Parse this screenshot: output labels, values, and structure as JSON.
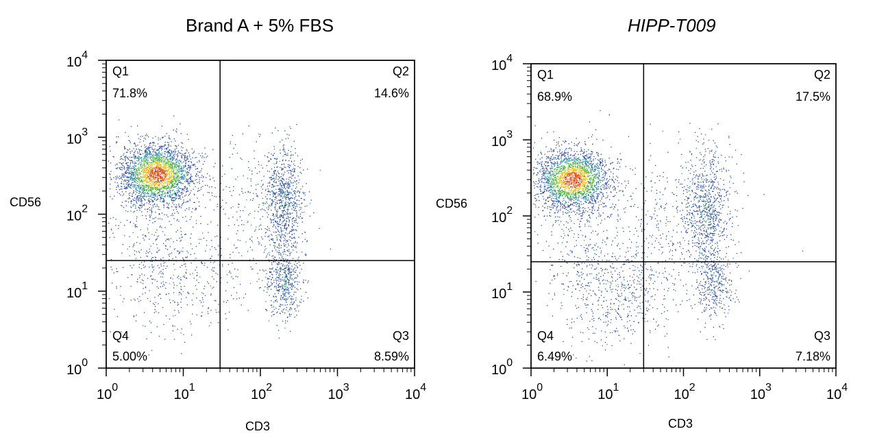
{
  "chart_data": [
    {
      "type": "scatter",
      "title": "Brand A + 5% FBS",
      "title_style": "normal",
      "xlabel": "CD3",
      "ylabel": "CD56",
      "xscale": "log",
      "yscale": "log",
      "xlim": [
        1,
        10000
      ],
      "ylim": [
        1,
        10000
      ],
      "x_ticks": [
        {
          "value": 1,
          "base": "10",
          "exp": "0"
        },
        {
          "value": 10,
          "base": "10",
          "exp": "1"
        },
        {
          "value": 100,
          "base": "10",
          "exp": "2"
        },
        {
          "value": 1000,
          "base": "10",
          "exp": "3"
        },
        {
          "value": 10000,
          "base": "10",
          "exp": "4"
        }
      ],
      "y_ticks": [
        {
          "value": 1,
          "base": "10",
          "exp": "0"
        },
        {
          "value": 10,
          "base": "10",
          "exp": "1"
        },
        {
          "value": 100,
          "base": "10",
          "exp": "2"
        },
        {
          "value": 1000,
          "base": "10",
          "exp": "3"
        },
        {
          "value": 10000,
          "base": "10",
          "exp": "4"
        }
      ],
      "gate": {
        "x": 30,
        "y": 25
      },
      "quadrants": [
        {
          "name": "Q1",
          "percent": "71.8%",
          "position": "top-left"
        },
        {
          "name": "Q2",
          "percent": "14.6%",
          "position": "top-right"
        },
        {
          "name": "Q3",
          "percent": "8.59%",
          "position": "bottom-right"
        },
        {
          "name": "Q4",
          "percent": "5.00%",
          "position": "bottom-left"
        }
      ],
      "populations": [
        {
          "center": [
            4.5,
            330
          ],
          "spread": [
            0.25,
            0.2
          ],
          "count": 2600,
          "dense": true
        },
        {
          "center": [
            200,
            150
          ],
          "spread": [
            0.12,
            0.35
          ],
          "count": 750,
          "dense": false
        },
        {
          "center": [
            200,
            14
          ],
          "spread": [
            0.12,
            0.25
          ],
          "count": 500,
          "dense": false
        },
        {
          "center": [
            8,
            12
          ],
          "spread": [
            0.4,
            0.35
          ],
          "count": 380,
          "dense": false
        },
        {
          "center": [
            90,
            120
          ],
          "spread": [
            0.35,
            0.45
          ],
          "count": 300,
          "dense": false
        },
        {
          "center": [
            5,
            60
          ],
          "spread": [
            0.35,
            0.35
          ],
          "count": 250,
          "dense": false
        }
      ]
    },
    {
      "type": "scatter",
      "title": "HIPP-T009",
      "title_style": "italic",
      "xlabel": "CD3",
      "ylabel": "CD56",
      "xscale": "log",
      "yscale": "log",
      "xlim": [
        1,
        10000
      ],
      "ylim": [
        1,
        10000
      ],
      "x_ticks": [
        {
          "value": 1,
          "base": "10",
          "exp": "0"
        },
        {
          "value": 10,
          "base": "10",
          "exp": "1"
        },
        {
          "value": 100,
          "base": "10",
          "exp": "2"
        },
        {
          "value": 1000,
          "base": "10",
          "exp": "3"
        },
        {
          "value": 10000,
          "base": "10",
          "exp": "4"
        }
      ],
      "y_ticks": [
        {
          "value": 1,
          "base": "10",
          "exp": "0"
        },
        {
          "value": 10,
          "base": "10",
          "exp": "1"
        },
        {
          "value": 100,
          "base": "10",
          "exp": "2"
        },
        {
          "value": 1000,
          "base": "10",
          "exp": "3"
        },
        {
          "value": 10000,
          "base": "10",
          "exp": "4"
        }
      ],
      "gate": {
        "x": 30,
        "y": 25
      },
      "quadrants": [
        {
          "name": "Q1",
          "percent": "68.9%",
          "position": "top-left"
        },
        {
          "name": "Q2",
          "percent": "17.5%",
          "position": "top-right"
        },
        {
          "name": "Q3",
          "percent": "7.18%",
          "position": "bottom-right"
        },
        {
          "name": "Q4",
          "percent": "6.49%",
          "position": "bottom-left"
        }
      ],
      "populations": [
        {
          "center": [
            3.5,
            300
          ],
          "spread": [
            0.25,
            0.2
          ],
          "count": 2400,
          "dense": true
        },
        {
          "center": [
            200,
            120
          ],
          "spread": [
            0.15,
            0.4
          ],
          "count": 800,
          "dense": false
        },
        {
          "center": [
            250,
            12
          ],
          "spread": [
            0.12,
            0.25
          ],
          "count": 350,
          "dense": false
        },
        {
          "center": [
            12,
            10
          ],
          "spread": [
            0.4,
            0.35
          ],
          "count": 600,
          "dense": false
        },
        {
          "center": [
            70,
            90
          ],
          "spread": [
            0.4,
            0.45
          ],
          "count": 350,
          "dense": false
        },
        {
          "center": [
            4,
            70
          ],
          "spread": [
            0.35,
            0.35
          ],
          "count": 250,
          "dense": false
        }
      ]
    }
  ]
}
